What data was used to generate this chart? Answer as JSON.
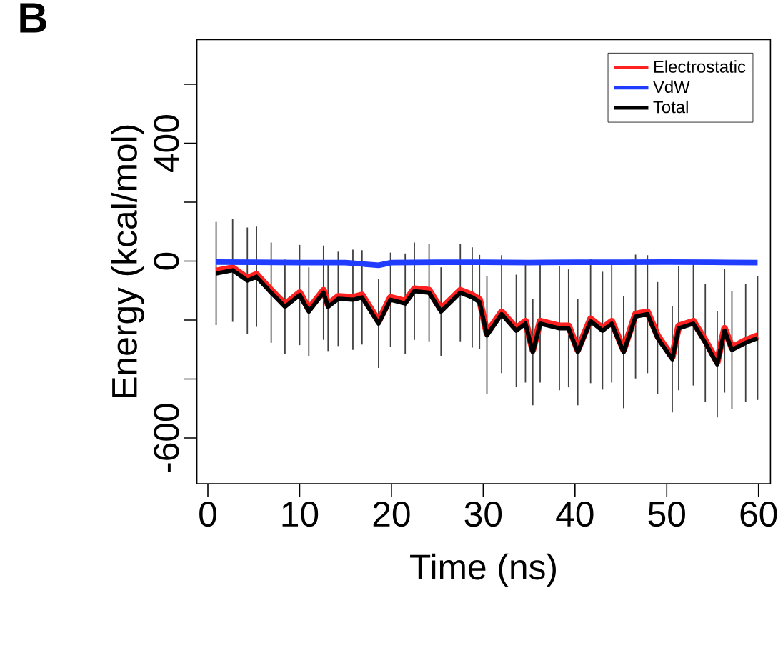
{
  "chart_data": {
    "type": "line",
    "title": "B",
    "xlabel": "Time (ns)",
    "ylabel": "Energy (kcal/mol)",
    "xlim": [
      -1.2,
      61.3
    ],
    "ylim": [
      -755,
      752
    ],
    "xticks": [
      0,
      10,
      20,
      30,
      40,
      50,
      60
    ],
    "yticks": [
      {
        "value": -600,
        "label": "-600"
      },
      {
        "value": -400,
        "label": null
      },
      {
        "value": -200,
        "label": null
      },
      {
        "value": 0,
        "label": "0"
      },
      {
        "value": 200,
        "label": null
      },
      {
        "value": 400,
        "label": "400"
      },
      {
        "value": 600,
        "label": null
      }
    ],
    "legend": "top right",
    "grid": false,
    "marker": "none",
    "line_style": "solid",
    "series": [
      {
        "name": "Electrostatic",
        "color": "#ff2020",
        "x": [
          0.9,
          2.7,
          4.3,
          5.3,
          6.9,
          8.4,
          10.0,
          11.0,
          12.6,
          13.1,
          14.2,
          15.8,
          16.8,
          18.6,
          19.9,
          21.5,
          22.5,
          24.1,
          25.4,
          27.5,
          28.8,
          29.6,
          30.4,
          32.0,
          33.6,
          34.6,
          35.4,
          36.2,
          38.3,
          39.3,
          40.3,
          41.7,
          43.0,
          44.0,
          45.3,
          46.6,
          47.9,
          49.0,
          50.6,
          51.3,
          52.9,
          54.2,
          55.5,
          56.3,
          57.1,
          58.6,
          59.9
        ],
        "values": [
          -34,
          -23,
          -58,
          -45,
          -99,
          -147,
          -107,
          -163,
          -99,
          -147,
          -120,
          -123,
          -115,
          -204,
          -123,
          -136,
          -94,
          -99,
          -163,
          -99,
          -115,
          -131,
          -244,
          -172,
          -228,
          -204,
          -301,
          -204,
          -220,
          -220,
          -301,
          -196,
          -228,
          -204,
          -301,
          -180,
          -172,
          -253,
          -325,
          -220,
          -204,
          -269,
          -342,
          -228,
          -293,
          -269,
          -253
        ]
      },
      {
        "name": "VdW",
        "color": "#1f3cff",
        "x": [
          0.9,
          5,
          10,
          15,
          18.6,
          20,
          25,
          30,
          35,
          40,
          45,
          50,
          55,
          59.9
        ],
        "values": [
          -3,
          -4,
          -5,
          -5,
          -14,
          -5,
          -4,
          -4,
          -5,
          -4,
          -4,
          -3,
          -4,
          -5
        ]
      },
      {
        "name": "Total",
        "color": "#000000",
        "x": [
          0.9,
          2.7,
          4.3,
          5.3,
          6.9,
          8.4,
          10.0,
          11.0,
          12.6,
          13.1,
          14.2,
          15.8,
          16.8,
          18.6,
          19.9,
          21.5,
          22.5,
          24.1,
          25.4,
          27.5,
          28.8,
          29.6,
          30.4,
          32.0,
          33.6,
          34.6,
          35.4,
          36.2,
          38.3,
          39.3,
          40.3,
          41.7,
          43.0,
          44.0,
          45.3,
          46.6,
          47.9,
          49.0,
          50.6,
          51.3,
          52.9,
          54.2,
          55.5,
          56.3,
          57.1,
          58.6,
          59.9
        ],
        "values": [
          -42,
          -31,
          -66,
          -53,
          -107,
          -155,
          -115,
          -171,
          -107,
          -155,
          -128,
          -131,
          -123,
          -212,
          -131,
          -144,
          -102,
          -107,
          -171,
          -107,
          -123,
          -139,
          -252,
          -180,
          -236,
          -212,
          -309,
          -212,
          -228,
          -228,
          -309,
          -204,
          -236,
          -212,
          -309,
          -188,
          -180,
          -261,
          -333,
          -228,
          -212,
          -277,
          -350,
          -236,
          -301,
          -277,
          -261
        ],
        "errors": [
          175,
          175,
          180,
          170,
          170,
          160,
          170,
          150,
          160,
          150,
          160,
          170,
          160,
          150,
          160,
          170,
          165,
          165,
          150,
          165,
          170,
          160,
          200,
          200,
          190,
          200,
          180,
          200,
          210,
          200,
          180,
          210,
          200,
          200,
          190,
          210,
          200,
          190,
          180,
          210,
          210,
          200,
          180,
          210,
          200,
          200,
          210
        ]
      }
    ]
  }
}
